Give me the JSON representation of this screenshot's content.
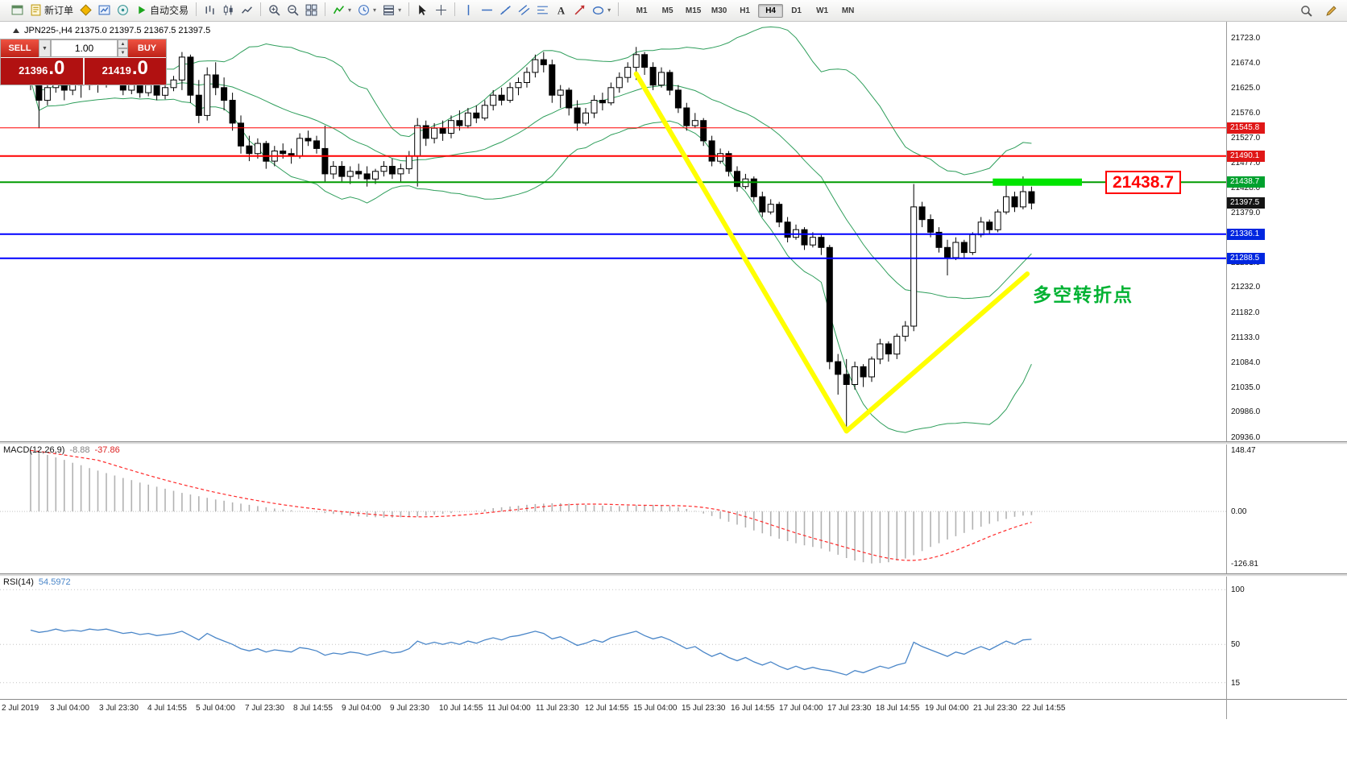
{
  "toolbar": {
    "items": [
      {
        "name": "terminal-window-icon",
        "icon": "window"
      },
      {
        "name": "new-order-button",
        "icon": "neworder",
        "label": "新订单"
      },
      {
        "name": "market-watch-icon",
        "icon": "diamond"
      },
      {
        "name": "new-chart-icon",
        "icon": "chartwin"
      },
      {
        "name": "navigator-icon",
        "icon": "nav"
      },
      {
        "name": "autotrading-button",
        "icon": "play",
        "label": "自动交易"
      },
      {
        "sep": true
      },
      {
        "name": "bar-chart-icon",
        "icon": "bars"
      },
      {
        "name": "candlestick-chart-icon",
        "icon": "candles"
      },
      {
        "name": "line-chart-icon",
        "icon": "linec"
      },
      {
        "sep": true
      },
      {
        "name": "zoom-in-icon",
        "icon": "zin"
      },
      {
        "name": "zoom-out-icon",
        "icon": "zout"
      },
      {
        "name": "tile-windows-icon",
        "icon": "tile"
      },
      {
        "sep": true
      },
      {
        "name": "indicators-icon",
        "icon": "ind",
        "caret": true
      },
      {
        "name": "periods-icon",
        "icon": "clock",
        "caret": true
      },
      {
        "name": "templates-icon",
        "icon": "tmpl",
        "caret": true
      },
      {
        "sep": true
      },
      {
        "name": "cursor-icon",
        "icon": "cursor"
      },
      {
        "name": "crosshair-icon",
        "icon": "cross"
      },
      {
        "sep": true
      },
      {
        "name": "vertical-line-icon",
        "icon": "vline"
      },
      {
        "name": "horizontal-line-icon",
        "icon": "hline"
      },
      {
        "name": "trendline-icon",
        "icon": "tline"
      },
      {
        "name": "channel-icon",
        "icon": "chan"
      },
      {
        "name": "fibonacci-icon",
        "icon": "fib"
      },
      {
        "name": "text-tool-icon",
        "icon": "text"
      },
      {
        "name": "arrows-tool-icon",
        "icon": "arrow"
      },
      {
        "name": "shapes-tool-icon",
        "icon": "shapes",
        "caret": true
      },
      {
        "sep": true
      }
    ],
    "timeframes": [
      "M1",
      "M5",
      "M15",
      "M30",
      "H1",
      "H4",
      "D1",
      "W1",
      "MN"
    ],
    "active_timeframe": "H4",
    "right_items": [
      {
        "name": "search-icon",
        "icon": "search"
      },
      {
        "name": "edit-icon",
        "icon": "edit"
      }
    ]
  },
  "chart": {
    "title": "JPN225-,H4 21375.0 21397.5 21367.5 21397.5",
    "annotation_text": "多空转折点",
    "price_box_label": "21438.7"
  },
  "trade": {
    "sell_label": "SELL",
    "buy_label": "BUY",
    "volume": "1.00",
    "dropdown_glyph": "▼",
    "spin_up": "▲",
    "spin_down": "▼",
    "sell_price": {
      "int": "21396",
      "dec": ".0"
    },
    "buy_price": {
      "int": "21419",
      "dec": ".0"
    }
  },
  "chart_data": {
    "type": "candlestick",
    "symbol": "JPN225-",
    "timeframe": "H4",
    "ohlc_display": {
      "open": "21375.0",
      "high": "21397.5",
      "low": "21367.5",
      "close": "21397.5"
    },
    "ylim": [
      20936,
      21723
    ],
    "y_ticks": [
      "21723.0",
      "21674.0",
      "21625.0",
      "21576.0",
      "21527.0",
      "21477.0",
      "21428.0",
      "21379.0",
      "21330.0",
      "21281.0",
      "21232.0",
      "21182.0",
      "21133.0",
      "21084.0",
      "21035.0",
      "20986.0",
      "20936.0"
    ],
    "x_ticks": [
      "2 Jul 2019",
      "3 Jul 04:00",
      "3 Jul 23:30",
      "4 Jul 14:55",
      "5 Jul 04:00",
      "7 Jul 23:30",
      "8 Jul 14:55",
      "9 Jul 04:00",
      "9 Jul 23:30",
      "10 Jul 14:55",
      "11 Jul 04:00",
      "11 Jul 23:30",
      "12 Jul 14:55",
      "15 Jul 04:00",
      "15 Jul 23:30",
      "16 Jul 14:55",
      "17 Jul 04:00",
      "17 Jul 23:30",
      "18 Jul 14:55",
      "19 Jul 04:00",
      "21 Jul 23:30",
      "22 Jul 14:55"
    ],
    "candles": [
      [
        21700,
        21715,
        21620,
        21640
      ],
      [
        21640,
        21655,
        21545,
        21600
      ],
      [
        21600,
        21640,
        21590,
        21625
      ],
      [
        21625,
        21700,
        21615,
        21655
      ],
      [
        21655,
        21665,
        21600,
        21620
      ],
      [
        21620,
        21660,
        21610,
        21645
      ],
      [
        21645,
        21655,
        21605,
        21630
      ],
      [
        21630,
        21670,
        21620,
        21650
      ],
      [
        21650,
        21660,
        21615,
        21635
      ],
      [
        21635,
        21675,
        21625,
        21655
      ],
      [
        21655,
        21665,
        21630,
        21640
      ],
      [
        21640,
        21650,
        21610,
        21620
      ],
      [
        21620,
        21645,
        21612,
        21635
      ],
      [
        21635,
        21642,
        21605,
        21615
      ],
      [
        21615,
        21640,
        21608,
        21630
      ],
      [
        21630,
        21638,
        21600,
        21610
      ],
      [
        21610,
        21632,
        21602,
        21625
      ],
      [
        21625,
        21648,
        21618,
        21640
      ],
      [
        21640,
        21695,
        21620,
        21685
      ],
      [
        21685,
        21690,
        21595,
        21610
      ],
      [
        21610,
        21640,
        21555,
        21570
      ],
      [
        21570,
        21665,
        21560,
        21650
      ],
      [
        21650,
        21675,
        21610,
        21625
      ],
      [
        21625,
        21645,
        21580,
        21600
      ],
      [
        21600,
        21615,
        21540,
        21555
      ],
      [
        21555,
        21570,
        21495,
        21510
      ],
      [
        21510,
        21530,
        21480,
        21495
      ],
      [
        21495,
        21525,
        21485,
        21515
      ],
      [
        21515,
        21520,
        21465,
        21480
      ],
      [
        21480,
        21510,
        21470,
        21500
      ],
      [
        21500,
        21515,
        21485,
        21495
      ],
      [
        21495,
        21505,
        21475,
        21490
      ],
      [
        21490,
        21535,
        21485,
        21525
      ],
      [
        21525,
        21540,
        21510,
        21520
      ],
      [
        21520,
        21530,
        21495,
        21505
      ],
      [
        21505,
        21550,
        21440,
        21455
      ],
      [
        21455,
        21480,
        21445,
        21470
      ],
      [
        21470,
        21480,
        21440,
        21450
      ],
      [
        21450,
        21470,
        21435,
        21460
      ],
      [
        21460,
        21475,
        21445,
        21455
      ],
      [
        21455,
        21470,
        21430,
        21445
      ],
      [
        21445,
        21465,
        21435,
        21460
      ],
      [
        21460,
        21480,
        21450,
        21470
      ],
      [
        21470,
        21485,
        21445,
        21455
      ],
      [
        21455,
        21475,
        21440,
        21465
      ],
      [
        21465,
        21500,
        21455,
        21490
      ],
      [
        21490,
        21565,
        21430,
        21550
      ],
      [
        21550,
        21560,
        21510,
        21525
      ],
      [
        21525,
        21555,
        21515,
        21545
      ],
      [
        21545,
        21560,
        21520,
        21535
      ],
      [
        21535,
        21570,
        21525,
        21560
      ],
      [
        21560,
        21580,
        21540,
        21550
      ],
      [
        21550,
        21585,
        21545,
        21575
      ],
      [
        21575,
        21590,
        21555,
        21565
      ],
      [
        21565,
        21600,
        21560,
        21590
      ],
      [
        21590,
        21620,
        21580,
        21610
      ],
      [
        21610,
        21625,
        21590,
        21600
      ],
      [
        21600,
        21635,
        21595,
        21625
      ],
      [
        21625,
        21645,
        21610,
        21635
      ],
      [
        21635,
        21665,
        21625,
        21655
      ],
      [
        21655,
        21690,
        21645,
        21680
      ],
      [
        21680,
        21695,
        21655,
        21670
      ],
      [
        21670,
        21680,
        21595,
        21610
      ],
      [
        21610,
        21630,
        21585,
        21620
      ],
      [
        21620,
        21625,
        21570,
        21585
      ],
      [
        21585,
        21600,
        21540,
        21555
      ],
      [
        21555,
        21585,
        21550,
        21575
      ],
      [
        21575,
        21610,
        21565,
        21600
      ],
      [
        21600,
        21615,
        21580,
        21595
      ],
      [
        21595,
        21635,
        21590,
        21625
      ],
      [
        21625,
        21655,
        21615,
        21645
      ],
      [
        21645,
        21675,
        21635,
        21665
      ],
      [
        21665,
        21705,
        21640,
        21690
      ],
      [
        21690,
        21695,
        21650,
        21665
      ],
      [
        21665,
        21675,
        21620,
        21630
      ],
      [
        21630,
        21665,
        21625,
        21655
      ],
      [
        21655,
        21660,
        21610,
        21620
      ],
      [
        21620,
        21630,
        21575,
        21585
      ],
      [
        21585,
        21595,
        21540,
        21550
      ],
      [
        21550,
        21575,
        21545,
        21560
      ],
      [
        21560,
        21565,
        21510,
        21520
      ],
      [
        21520,
        21530,
        21470,
        21480
      ],
      [
        21480,
        21505,
        21475,
        21495
      ],
      [
        21495,
        21500,
        21450,
        21460
      ],
      [
        21460,
        21470,
        21420,
        21430
      ],
      [
        21430,
        21455,
        21425,
        21445
      ],
      [
        21445,
        21450,
        21400,
        21410
      ],
      [
        21410,
        21420,
        21370,
        21380
      ],
      [
        21380,
        21405,
        21375,
        21395
      ],
      [
        21395,
        21400,
        21350,
        21360
      ],
      [
        21360,
        21370,
        21320,
        21330
      ],
      [
        21330,
        21355,
        21325,
        21345
      ],
      [
        21345,
        21350,
        21305,
        21315
      ],
      [
        21315,
        21340,
        21310,
        21330
      ],
      [
        21330,
        21335,
        21295,
        21310
      ],
      [
        21310,
        21315,
        21070,
        21085
      ],
      [
        21085,
        21100,
        21020,
        21060
      ],
      [
        21060,
        21090,
        20950,
        21040
      ],
      [
        21040,
        21085,
        21030,
        21075
      ],
      [
        21075,
        21080,
        21035,
        21055
      ],
      [
        21055,
        21095,
        21045,
        21090
      ],
      [
        21090,
        21130,
        21080,
        21120
      ],
      [
        21120,
        21125,
        21085,
        21100
      ],
      [
        21100,
        21140,
        21090,
        21135
      ],
      [
        21135,
        21165,
        21125,
        21155
      ],
      [
        21155,
        21435,
        21145,
        21390
      ],
      [
        21390,
        21400,
        21350,
        21365
      ],
      [
        21365,
        21375,
        21330,
        21340
      ],
      [
        21340,
        21350,
        21300,
        21310
      ],
      [
        21310,
        21325,
        21255,
        21290
      ],
      [
        21290,
        21330,
        21285,
        21320
      ],
      [
        21320,
        21325,
        21290,
        21300
      ],
      [
        21300,
        21340,
        21295,
        21335
      ],
      [
        21335,
        21370,
        21330,
        21360
      ],
      [
        21360,
        21365,
        21335,
        21345
      ],
      [
        21345,
        21385,
        21340,
        21380
      ],
      [
        21380,
        21445,
        21375,
        21410
      ],
      [
        21410,
        21420,
        21380,
        21390
      ],
      [
        21390,
        21450,
        21385,
        21420
      ],
      [
        21420,
        21430,
        21385,
        21397.5
      ]
    ],
    "bollinger": {
      "period": 20,
      "deviation": 2,
      "color": "#2e9e5b"
    },
    "hlines": [
      {
        "price": 21545.8,
        "color": "#ff0000",
        "width": 1
      },
      {
        "price": 21490.1,
        "color": "#ff0000",
        "width": 2
      },
      {
        "price": 21438.7,
        "color": "#009b00",
        "width": 2
      },
      {
        "price": 21336.1,
        "color": "#0000ff",
        "width": 2
      },
      {
        "price": 21288.5,
        "color": "#0000ff",
        "width": 2
      }
    ],
    "price_tags": [
      {
        "text": "21545.8",
        "price": 21545.8,
        "bg": "#e01717"
      },
      {
        "text": "21490.1",
        "price": 21490.1,
        "bg": "#e01717"
      },
      {
        "text": "21438.7",
        "price": 21438.7,
        "bg": "#00a12e"
      },
      {
        "text": "21397.5",
        "price": 21397.5,
        "bg": "#141414"
      },
      {
        "text": "21336.1",
        "price": 21336.1,
        "bg": "#0026e0"
      },
      {
        "text": "21288.5",
        "price": 21288.5,
        "bg": "#0026e0"
      }
    ],
    "trendline": {
      "color": "#ffff00",
      "width": 6,
      "points": [
        [
          72,
          21652
        ],
        [
          97,
          20948
        ],
        [
          118.5,
          21258
        ]
      ]
    },
    "highlight": {
      "price": 21438.7,
      "from_index": 114.4,
      "to_index": 125,
      "color": "#00e400",
      "thickness": 9
    },
    "macd": {
      "name": "MACD(12,26,9)",
      "value": "-8.88",
      "signal_value": "-37.86",
      "levels": [
        "148.47",
        "0.00",
        "-126.81"
      ],
      "level_values": [
        148.47,
        0,
        -126.81
      ],
      "ylim": [
        -150,
        170
      ],
      "histogram_color": "#b2b2b2",
      "signal_color": "#ff2a2a",
      "values": [
        148,
        143,
        137,
        131,
        125,
        118,
        112,
        105,
        99,
        93,
        87,
        81,
        76,
        70,
        65,
        60,
        55,
        50,
        45,
        41,
        37,
        33,
        29,
        26,
        22,
        19,
        16,
        13,
        10,
        7,
        5,
        3,
        1,
        0,
        -2,
        -4,
        -6,
        -8,
        -10,
        -12,
        -13,
        -14,
        -15,
        -15,
        -14,
        -13,
        -12,
        -10,
        -8,
        -6,
        -4,
        -2,
        0,
        2,
        5,
        8,
        10,
        12,
        14,
        16,
        18,
        19,
        20,
        20,
        19,
        18,
        16,
        15,
        14,
        13,
        13,
        14,
        15,
        16,
        16,
        15,
        13,
        10,
        6,
        1,
        -5,
        -11,
        -18,
        -25,
        -32,
        -39,
        -46,
        -53,
        -60,
        -66,
        -72,
        -77,
        -82,
        -86,
        -90,
        -97,
        -105,
        -113,
        -119,
        -123,
        -126,
        -125,
        -123,
        -119,
        -114,
        -106,
        -96,
        -86,
        -77,
        -68,
        -60,
        -52,
        -44,
        -37,
        -30,
        -24,
        -18,
        -13,
        -10,
        -8.9
      ]
    },
    "rsi": {
      "name": "RSI(14)",
      "value": "54.5972",
      "levels": [
        "100",
        "50",
        "15"
      ],
      "level_values": [
        100,
        50,
        15
      ],
      "ylim": [
        0,
        115
      ],
      "color": "#4a86c8",
      "values": [
        63,
        61,
        62,
        64,
        62,
        63,
        62,
        64,
        63,
        64,
        62,
        60,
        61,
        59,
        60,
        58,
        59,
        60,
        62,
        58,
        54,
        60,
        56,
        53,
        50,
        46,
        44,
        46,
        43,
        45,
        44,
        43,
        47,
        46,
        44,
        40,
        42,
        41,
        43,
        42,
        40,
        42,
        44,
        42,
        43,
        46,
        53,
        50,
        52,
        50,
        52,
        50,
        53,
        51,
        54,
        56,
        54,
        57,
        58,
        60,
        62,
        60,
        55,
        57,
        53,
        49,
        51,
        54,
        52,
        56,
        58,
        60,
        62,
        58,
        55,
        57,
        54,
        50,
        46,
        48,
        43,
        39,
        42,
        38,
        35,
        38,
        34,
        31,
        34,
        30,
        27,
        30,
        27,
        29,
        27,
        26,
        24,
        22,
        26,
        24,
        27,
        30,
        28,
        31,
        33,
        52,
        48,
        45,
        42,
        39,
        43,
        41,
        45,
        48,
        45,
        49,
        53,
        50,
        54,
        54.6
      ]
    }
  }
}
